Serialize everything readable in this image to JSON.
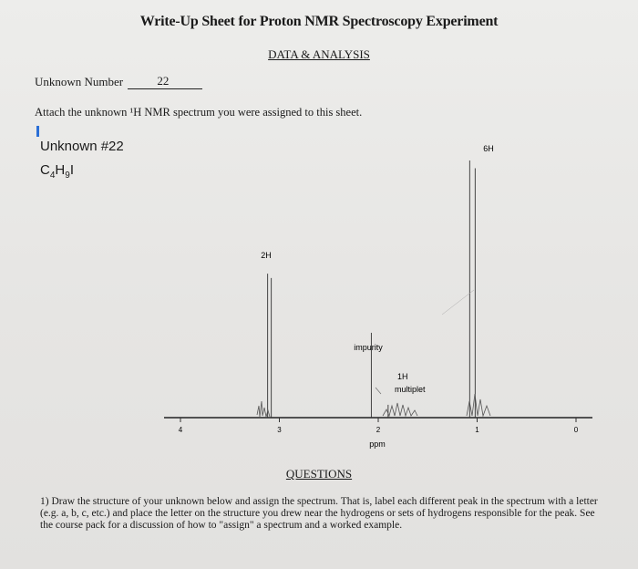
{
  "header": {
    "title": "Write-Up Sheet for Proton NMR Spectroscopy Experiment",
    "section": "DATA & ANALYSIS"
  },
  "unknown_field": {
    "label": "Unknown Number",
    "value": "22"
  },
  "instruction": "Attach the unknown ¹H NMR spectrum you were assigned to this sheet.",
  "spectrum": {
    "name": "Unknown #22",
    "formula_parts": [
      "C",
      "4",
      "H",
      "9",
      "I"
    ],
    "peak_labels": {
      "doublet": "6H",
      "quartet_like": "2H",
      "impurity": "impurity",
      "multiplet_line1": "1H",
      "multiplet_line2": "multiplet"
    },
    "axis_unit": "ppm"
  },
  "chart_data": {
    "type": "line",
    "title": "Unknown #22",
    "xlabel": "ppm",
    "ylabel": "",
    "xlim": [
      4.25,
      -0.2
    ],
    "ticks": [
      "4",
      "3",
      "2",
      "1",
      "0"
    ],
    "peaks": [
      {
        "label": "2H",
        "ppm": 3.1,
        "height_rel": 0.56
      },
      {
        "label": "impurity",
        "ppm": 2.07,
        "height_rel": 0.33
      },
      {
        "label": "1H multiplet",
        "ppm": 1.9,
        "height_rel": 0.05
      },
      {
        "label": "6H",
        "ppm": 1.02,
        "height_rel": 1.0
      }
    ]
  },
  "questions": {
    "heading": "QUESTIONS",
    "q1": "1) Draw the structure of your unknown below and assign the spectrum. That is, label each different peak in the spectrum with a letter (e.g. a, b, c, etc.) and place the letter on the structure you drew near the hydrogens or sets of hydrogens responsible for the peak. See the course pack for a discussion of how to \"assign\" a spectrum and a worked example."
  }
}
